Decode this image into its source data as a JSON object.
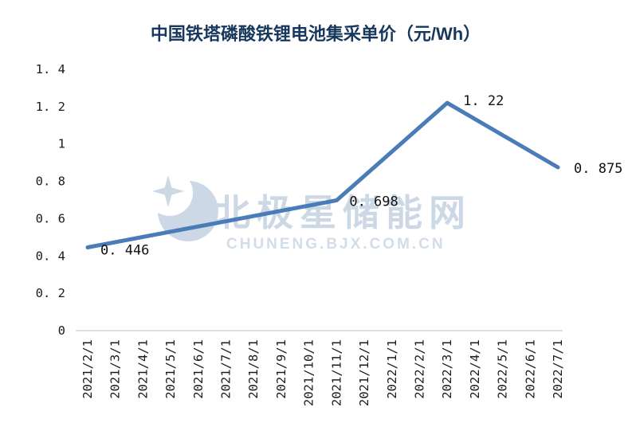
{
  "page": {
    "background": "#ffffff"
  },
  "title": "中国铁塔磷酸铁锂电池集采单价（元/Wh）",
  "watermark": {
    "name": "北极星储能网",
    "url": "CHUNENG.BJX.COM.CN"
  },
  "colors": {
    "title": "#17375d",
    "line": "#4a7cb8",
    "axis_line": "#bfbfbf",
    "tick_text": "#1c1c1c",
    "data_label_text": "#111111",
    "watermark": "#c8d4e4"
  },
  "chart_data": {
    "type": "line",
    "title": "中国铁塔磷酸铁锂电池集采单价（元/Wh）",
    "xlabel": "",
    "ylabel": "",
    "ylim": [
      0,
      1.4
    ],
    "grid": false,
    "legend": "none",
    "x_label_rotation": 90,
    "categories": [
      "2021/2/1",
      "2021/3/1",
      "2021/4/1",
      "2021/5/1",
      "2021/6/1",
      "2021/7/1",
      "2021/8/1",
      "2021/9/1",
      "2021/10/1",
      "2021/11/1",
      "2021/12/1",
      "2022/1/1",
      "2022/2/1",
      "2022/3/1",
      "2022/4/1",
      "2022/5/1",
      "2022/6/1",
      "2022/7/1"
    ],
    "yticks": [
      {
        "value": 0,
        "label": "0"
      },
      {
        "value": 0.2,
        "label": "0. 2"
      },
      {
        "value": 0.4,
        "label": "0. 4"
      },
      {
        "value": 0.6,
        "label": "0. 6"
      },
      {
        "value": 0.8,
        "label": "0. 8"
      },
      {
        "value": 1,
        "label": "1"
      },
      {
        "value": 1.2,
        "label": "1. 2"
      },
      {
        "value": 1.4,
        "label": "1. 4"
      }
    ],
    "series": [
      {
        "name": "中国铁塔磷酸铁锂电池集采单价",
        "points": [
          {
            "category": "2021/2/1",
            "value": 0.446,
            "label": "0. 446",
            "label_dx": 16,
            "label_dy": 9
          },
          {
            "category": "2021/11/1",
            "value": 0.698,
            "label": "0. 698",
            "label_dx": 16,
            "label_dy": 7
          },
          {
            "category": "2022/3/1",
            "value": 1.22,
            "label": "1. 22",
            "label_dx": 20,
            "label_dy": 3
          },
          {
            "category": "2022/7/1",
            "value": 0.875,
            "label": "0. 875",
            "label_dx": 20,
            "label_dy": 7
          }
        ]
      }
    ]
  }
}
